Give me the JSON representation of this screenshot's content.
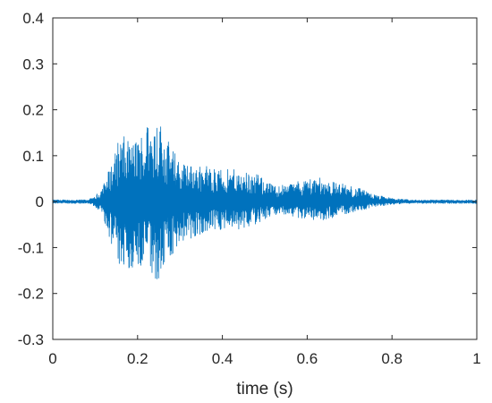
{
  "chart_data": {
    "type": "line",
    "title": "",
    "xlabel": "time (s)",
    "ylabel": "",
    "xlim": [
      0,
      1
    ],
    "ylim": [
      -0.3,
      0.4
    ],
    "grid": false,
    "legend": "none",
    "x_ticks": [
      0,
      0.2,
      0.4,
      0.6,
      0.8,
      1
    ],
    "x_tick_labels": [
      "0",
      "0.2",
      "0.4",
      "0.6",
      "0.8",
      "1"
    ],
    "y_ticks": [
      -0.3,
      -0.2,
      -0.1,
      0,
      0.1,
      0.2,
      0.3,
      0.4
    ],
    "y_tick_labels": [
      "-0.3",
      "-0.2",
      "-0.1",
      "0",
      "0.1",
      "0.2",
      "0.3",
      "0.4"
    ],
    "series": [
      {
        "color": "#0072bd",
        "envelope": {
          "t": [
            0,
            0.08,
            0.1,
            0.12,
            0.14,
            0.16,
            0.18,
            0.2,
            0.22,
            0.24,
            0.25,
            0.26,
            0.28,
            0.3,
            0.33,
            0.36,
            0.4,
            0.44,
            0.48,
            0.5,
            0.52,
            0.55,
            0.58,
            0.61,
            0.64,
            0.68,
            0.72,
            0.76,
            0.8,
            0.84,
            1.0
          ],
          "upper": [
            0.004,
            0.004,
            0.01,
            0.04,
            0.09,
            0.15,
            0.13,
            0.14,
            0.17,
            0.2,
            0.19,
            0.16,
            0.12,
            0.09,
            0.08,
            0.08,
            0.07,
            0.07,
            0.06,
            0.05,
            0.035,
            0.04,
            0.045,
            0.055,
            0.05,
            0.04,
            0.03,
            0.015,
            0.008,
            0.004,
            0.004
          ],
          "lower": [
            -0.004,
            -0.004,
            -0.01,
            -0.04,
            -0.1,
            -0.16,
            -0.15,
            -0.14,
            -0.15,
            -0.19,
            -0.17,
            -0.15,
            -0.12,
            -0.1,
            -0.08,
            -0.07,
            -0.06,
            -0.06,
            -0.05,
            -0.04,
            -0.03,
            -0.03,
            -0.035,
            -0.04,
            -0.04,
            -0.03,
            -0.02,
            -0.012,
            -0.006,
            -0.004,
            -0.004
          ]
        },
        "samples": 2200
      }
    ]
  }
}
